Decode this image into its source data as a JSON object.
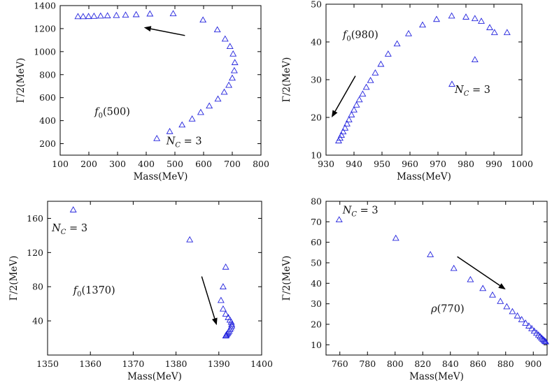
{
  "chart_data": [
    {
      "type": "scatter",
      "xlabel": "Mass(MeV)",
      "ylabel": "Γ/2(MeV)",
      "xlim": [
        100,
        800
      ],
      "ylim": [
        100,
        1400
      ],
      "xticks": [
        100,
        200,
        300,
        400,
        500,
        600,
        700,
        800
      ],
      "yticks": [
        200,
        400,
        600,
        800,
        1000,
        1200,
        1400
      ],
      "marker_color": "#2222dd",
      "annotations": [
        {
          "text": "f0(500)",
          "at": [
            220,
            450
          ]
        },
        {
          "text": "N_C = 3",
          "at": [
            470,
            195
          ]
        }
      ],
      "arrow": {
        "from": [
          535,
          1140
        ],
        "to": [
          392,
          1210
        ]
      },
      "points": [
        [
          162,
          1305
        ],
        [
          180,
          1305
        ],
        [
          199,
          1306
        ],
        [
          218,
          1308
        ],
        [
          241,
          1310
        ],
        [
          265,
          1312
        ],
        [
          296,
          1315
        ],
        [
          328,
          1318
        ],
        [
          365,
          1322
        ],
        [
          413,
          1328
        ],
        [
          494,
          1330
        ],
        [
          598,
          1275
        ],
        [
          648,
          1190
        ],
        [
          675,
          1110
        ],
        [
          692,
          1045
        ],
        [
          703,
          980
        ],
        [
          709,
          905
        ],
        [
          707,
          835
        ],
        [
          700,
          770
        ],
        [
          688,
          708
        ],
        [
          672,
          648
        ],
        [
          650,
          588
        ],
        [
          620,
          528
        ],
        [
          590,
          472
        ],
        [
          560,
          415
        ],
        [
          525,
          363
        ],
        [
          482,
          306
        ],
        [
          437,
          245
        ]
      ]
    },
    {
      "type": "scatter",
      "xlabel": "Mass(MeV)",
      "ylabel": "Γ/2(MeV)",
      "xlim": [
        930,
        1000
      ],
      "ylim": [
        10,
        50
      ],
      "xticks": [
        930,
        940,
        950,
        960,
        970,
        980,
        990,
        1000
      ],
      "yticks": [
        10,
        20,
        30,
        40,
        50
      ],
      "marker_color": "#2222dd",
      "annotations": [
        {
          "text": "f0(980)",
          "at": [
            936,
            41
          ]
        },
        {
          "text": "N_C = 3",
          "at": [
            976,
            26.5
          ]
        }
      ],
      "arrow": {
        "from": [
          940.5,
          31
        ],
        "to": [
          932,
          20
        ]
      },
      "points": [
        [
          934.5,
          13.8
        ],
        [
          935.0,
          14.5
        ],
        [
          935.5,
          15.3
        ],
        [
          936.1,
          16.2
        ],
        [
          936.8,
          17.2
        ],
        [
          937.5,
          18.3
        ],
        [
          938.2,
          19.4
        ],
        [
          939.1,
          20.7
        ],
        [
          940.0,
          22.0
        ],
        [
          940.9,
          23.3
        ],
        [
          941.9,
          24.7
        ],
        [
          943.1,
          26.2
        ],
        [
          944.4,
          28.0
        ],
        [
          945.9,
          29.8
        ],
        [
          947.6,
          31.8
        ],
        [
          949.6,
          34.1
        ],
        [
          952.2,
          36.8
        ],
        [
          955.4,
          39.5
        ],
        [
          959.5,
          42.2
        ],
        [
          964.5,
          44.5
        ],
        [
          969.5,
          46.0
        ],
        [
          974.9,
          46.9
        ],
        [
          980.0,
          46.6
        ],
        [
          983.2,
          46.2
        ],
        [
          985.5,
          45.5
        ],
        [
          988.5,
          43.8
        ],
        [
          990.2,
          42.5
        ],
        [
          994.7,
          42.5
        ],
        [
          983.2,
          35.3
        ],
        [
          975.0,
          28.8
        ]
      ]
    },
    {
      "type": "scatter",
      "xlabel": "Mass(MeV)",
      "ylabel": "Γ/2(MeV)",
      "xlim": [
        1350,
        1400
      ],
      "ylim": [
        0,
        180
      ],
      "xticks": [
        1350,
        1360,
        1370,
        1380,
        1390,
        1400
      ],
      "yticks": [
        40,
        80,
        120,
        160
      ],
      "marker_color": "#2222dd",
      "annotations": [
        {
          "text": "f0(1370)",
          "at": [
            1356,
            72
          ]
        },
        {
          "text": "N_C = 3",
          "at": [
            1351,
            145
          ]
        }
      ],
      "arrow": {
        "from": [
          1386,
          92
        ],
        "to": [
          1389.5,
          35
        ]
      },
      "points": [
        [
          1356,
          170
        ],
        [
          1383.2,
          135
        ],
        [
          1391.6,
          103
        ],
        [
          1391.0,
          80
        ],
        [
          1390.5,
          64
        ],
        [
          1391.0,
          54
        ],
        [
          1391.6,
          48
        ],
        [
          1392.2,
          44
        ],
        [
          1392.6,
          41
        ],
        [
          1392.9,
          38.5
        ],
        [
          1393.0,
          36
        ],
        [
          1393.0,
          34
        ],
        [
          1392.8,
          32
        ],
        [
          1392.6,
          30
        ],
        [
          1392.4,
          28
        ],
        [
          1392.2,
          26.5
        ],
        [
          1392.0,
          25
        ],
        [
          1391.8,
          24
        ],
        [
          1391.7,
          23
        ],
        [
          1391.6,
          22.5
        ]
      ]
    },
    {
      "type": "scatter",
      "xlabel": "Mass(MeV)",
      "ylabel": "Γ/2(MeV)",
      "xlim": [
        750,
        910
      ],
      "ylim": [
        5,
        80
      ],
      "xticks": [
        760,
        780,
        800,
        820,
        840,
        860,
        880,
        900
      ],
      "yticks": [
        10,
        20,
        30,
        40,
        50,
        60,
        70,
        80
      ],
      "marker_color": "#2222dd",
      "annotations": [
        {
          "text": "ρ(770)",
          "at": [
            826,
            26
          ]
        },
        {
          "text": "N_C = 3",
          "at": [
            762,
            74
          ]
        }
      ],
      "arrow": {
        "from": [
          845,
          53
        ],
        "to": [
          880,
          37
        ]
      },
      "points": [
        [
          759.5,
          71
        ],
        [
          800.5,
          62
        ],
        [
          825.5,
          54
        ],
        [
          842.5,
          47.3
        ],
        [
          854.5,
          41.8
        ],
        [
          863.5,
          37.5
        ],
        [
          870.5,
          34.3
        ],
        [
          876.2,
          31.2
        ],
        [
          880.8,
          28.6
        ],
        [
          884.9,
          26.2
        ],
        [
          888.5,
          24.1
        ],
        [
          891.6,
          22.3
        ],
        [
          894.4,
          20.6
        ],
        [
          896.8,
          19.2
        ],
        [
          898.9,
          17.9
        ],
        [
          900.7,
          16.7
        ],
        [
          902.4,
          15.7
        ],
        [
          903.8,
          14.8
        ],
        [
          905.0,
          14.0
        ],
        [
          906.0,
          13.3
        ],
        [
          906.9,
          12.7
        ],
        [
          907.7,
          12.2
        ],
        [
          908.4,
          11.8
        ],
        [
          909.0,
          11.5
        ]
      ]
    }
  ]
}
